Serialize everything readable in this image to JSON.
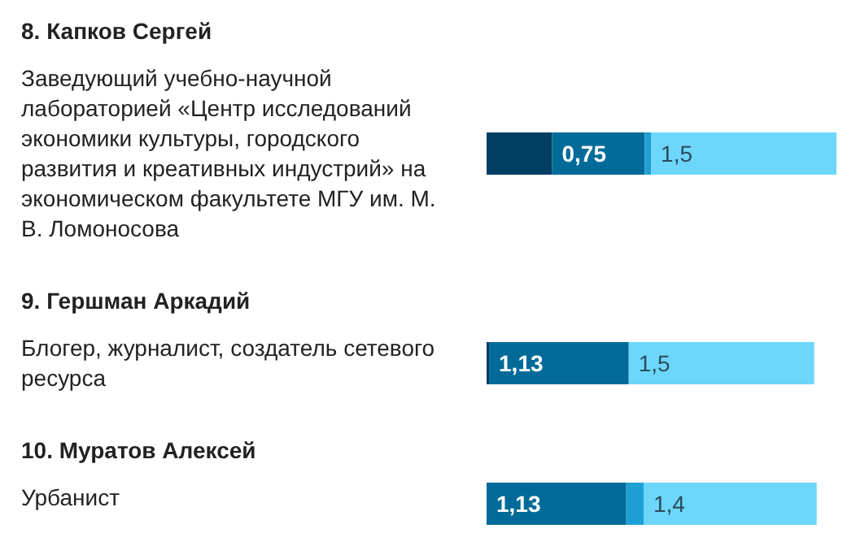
{
  "chart_data": {
    "type": "bar",
    "orientation": "horizontal",
    "stacked": true,
    "categories": [
      "8. Капков Сергей",
      "9. Гершман Аркадий",
      "10. Муратов Алексей"
    ],
    "annotations": [
      "Заведующий учебно-научной лабораторией «Центр исследований экономики культуры, городского развития и креативных индустрий» на экономическом факультете МГУ им. М. В. Ломоносова",
      "Блогер, журналист, создатель сетевого ресурса",
      "Урбанист"
    ],
    "series": [
      {
        "color": "#033e63",
        "values": [
          0.53,
          0.02,
          0
        ],
        "value_labels": [
          null,
          null,
          null
        ]
      },
      {
        "color": "#006b99",
        "values": [
          0.75,
          1.13,
          1.13
        ],
        "value_labels": [
          "0,75",
          "1,13",
          "1,13"
        ]
      },
      {
        "color": "#1ea0d5",
        "values": [
          0.05,
          0,
          0.14
        ],
        "value_labels": [
          null,
          null,
          null
        ]
      },
      {
        "color": "#6dd6fb",
        "values": [
          1.5,
          1.5,
          1.4
        ],
        "value_labels": [
          "1,5",
          "1,5",
          "1,4"
        ]
      }
    ]
  }
}
